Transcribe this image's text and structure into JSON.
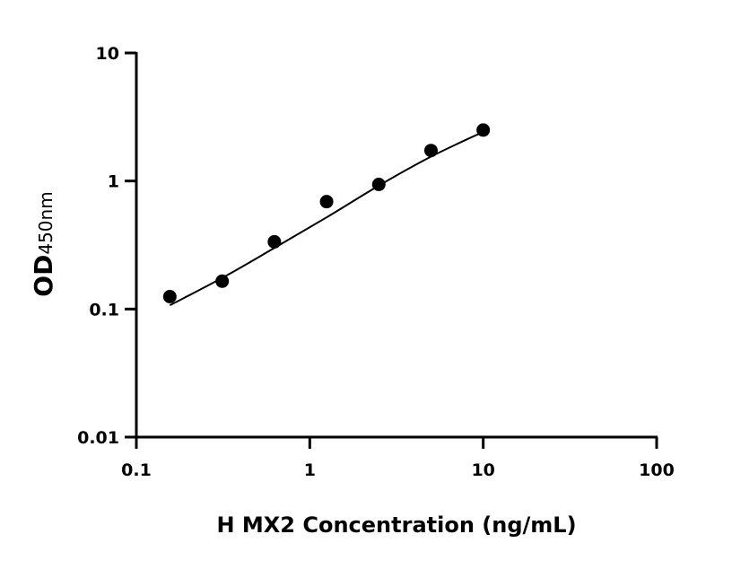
{
  "chart_data": {
    "type": "scatter",
    "title": "",
    "xlabel": "H MX2 Concentration (ng/mL)",
    "ylabel_main": "OD",
    "ylabel_sub": "450nm",
    "x_scale": "log",
    "y_scale": "log",
    "xlim": [
      0.1,
      100
    ],
    "ylim": [
      0.01,
      10
    ],
    "x_ticks": [
      0.1,
      1,
      10,
      100
    ],
    "x_tick_labels": [
      "0.1",
      "1",
      "10",
      "100"
    ],
    "y_ticks": [
      0.01,
      0.1,
      1,
      10
    ],
    "y_tick_labels": [
      "0.01",
      "0.1",
      "1",
      "10"
    ],
    "grid": false,
    "color": "#000000",
    "points": {
      "x": [
        0.156,
        0.3125,
        0.625,
        1.25,
        2.5,
        5,
        10
      ],
      "y": [
        0.125,
        0.165,
        0.335,
        0.69,
        0.94,
        1.73,
        2.5
      ]
    },
    "fit_curve": {
      "x": [
        0.156,
        0.3125,
        0.625,
        1.25,
        2.5,
        5,
        10
      ],
      "y": [
        0.107,
        0.175,
        0.3,
        0.52,
        0.92,
        1.55,
        2.42
      ]
    }
  }
}
